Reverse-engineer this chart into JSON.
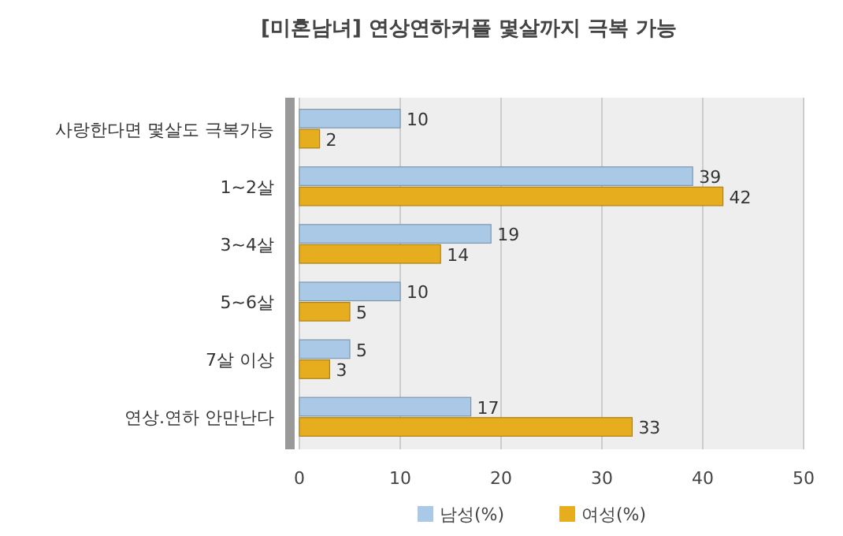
{
  "chart_data": {
    "type": "bar",
    "orientation": "horizontal",
    "title": "[미혼남녀] 연상연하커플 몇살까지 극복 가능",
    "categories": [
      "사랑한다면 몇살도 극복가능",
      "1~2살",
      "3~4살",
      "5~6살",
      "7살 이상",
      "연상.연하 안만난다"
    ],
    "series": [
      {
        "name": "남성(%)",
        "color": "#a9c9e6",
        "values": [
          10,
          39,
          19,
          10,
          5,
          17
        ]
      },
      {
        "name": "여성(%)",
        "color": "#e6ad1e",
        "values": [
          2,
          42,
          14,
          5,
          3,
          33
        ]
      }
    ],
    "xlim": [
      0,
      50
    ],
    "xticks": [
      0,
      10,
      20,
      30,
      40,
      50
    ],
    "grid": "x",
    "legend": "bottom",
    "data_labels": true
  }
}
